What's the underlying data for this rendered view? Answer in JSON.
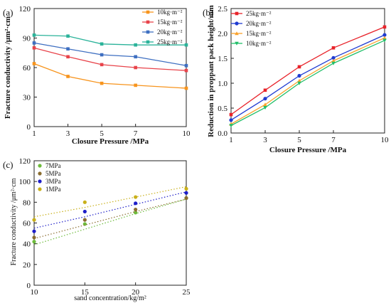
{
  "chart_data": [
    {
      "type": "line",
      "panel_label": "(a)",
      "x": [
        1,
        3,
        5,
        7,
        10
      ],
      "xlabel": "Closure Pressure /MPa",
      "ylabel": "Fracture conductivity /μm²·cm",
      "xlim": [
        1,
        10
      ],
      "ylim": [
        0,
        120
      ],
      "xticks": [
        1,
        3,
        5,
        7,
        10
      ],
      "yticks": [
        0,
        30,
        60,
        90,
        120
      ],
      "legend_position": "top-right",
      "grid": false,
      "series": [
        {
          "name": "10kg·m⁻²",
          "color": "#f7941d",
          "marker": "square",
          "values": [
            64,
            51,
            44,
            42,
            39
          ]
        },
        {
          "name": "15kg·m⁻²",
          "color": "#e8434a",
          "marker": "square",
          "values": [
            80,
            71,
            63,
            60,
            57
          ]
        },
        {
          "name": "20kg·m⁻²",
          "color": "#3e6fc1",
          "marker": "square",
          "values": [
            85,
            79,
            73,
            71,
            62
          ]
        },
        {
          "name": "25kg·m⁻²",
          "color": "#2bb39a",
          "marker": "square",
          "values": [
            93,
            92,
            84,
            83,
            83
          ]
        }
      ]
    },
    {
      "type": "line",
      "panel_label": "(b)",
      "x": [
        1,
        3,
        5,
        7,
        10
      ],
      "xlabel": "Closure Pressure /MPa",
      "ylabel": "Reduction in proppant pack height/mm",
      "xlim": [
        1,
        10
      ],
      "ylim": [
        0,
        2.5
      ],
      "xticks": [
        1,
        3,
        5,
        7,
        10
      ],
      "yticks": [
        "0.0",
        "0.5",
        "1.0",
        "1.5",
        "2.0",
        "2.5"
      ],
      "legend_position": "top-left",
      "grid": false,
      "series": [
        {
          "name": "25kg·m⁻²",
          "color": "#e8232a",
          "marker": "square",
          "values": [
            0.37,
            0.86,
            1.33,
            1.71,
            2.13
          ]
        },
        {
          "name": "20kg·m⁻²",
          "color": "#1f3bd1",
          "marker": "circle",
          "values": [
            0.26,
            0.69,
            1.15,
            1.51,
            1.97
          ]
        },
        {
          "name": "15kg·m⁻²",
          "color": "#f9a22b",
          "marker": "triangle-up",
          "values": [
            0.18,
            0.57,
            1.05,
            1.45,
            1.91
          ]
        },
        {
          "name": "10kg·m⁻²",
          "color": "#23bf6a",
          "marker": "triangle-down",
          "values": [
            0.15,
            0.51,
            1.0,
            1.4,
            1.86
          ]
        }
      ]
    },
    {
      "type": "scatter",
      "panel_label": "(c)",
      "x": [
        10,
        15,
        20,
        25
      ],
      "xlabel": "sand concentration/kg/m²",
      "ylabel": "Fracture conductivity /μm²·cm",
      "xlim": [
        10,
        25
      ],
      "ylim": [
        0,
        120
      ],
      "xticks": [
        10,
        15,
        20,
        25
      ],
      "yticks": [
        0,
        20,
        40,
        60,
        80,
        100,
        120
      ],
      "legend_position": "top-left",
      "grid": false,
      "trendline": "dotted linear fit",
      "series": [
        {
          "name": "7MPa",
          "color": "#6dbb3b",
          "values": [
            42,
            59,
            70,
            84
          ],
          "fit": [
            39,
            54,
            69,
            83
          ]
        },
        {
          "name": "5MPa",
          "color": "#8a6d2f",
          "values": [
            46,
            63,
            73,
            84
          ],
          "fit": [
            45,
            58,
            71,
            83
          ]
        },
        {
          "name": "3MPa",
          "color": "#1e1ec8",
          "values": [
            52,
            71,
            79,
            89
          ],
          "fit": [
            55,
            66,
            78,
            90
          ]
        },
        {
          "name": "1MPa",
          "color": "#c9b01a",
          "values": [
            63,
            80,
            85,
            93
          ],
          "fit": [
            66,
            75,
            85,
            95
          ]
        }
      ]
    }
  ]
}
